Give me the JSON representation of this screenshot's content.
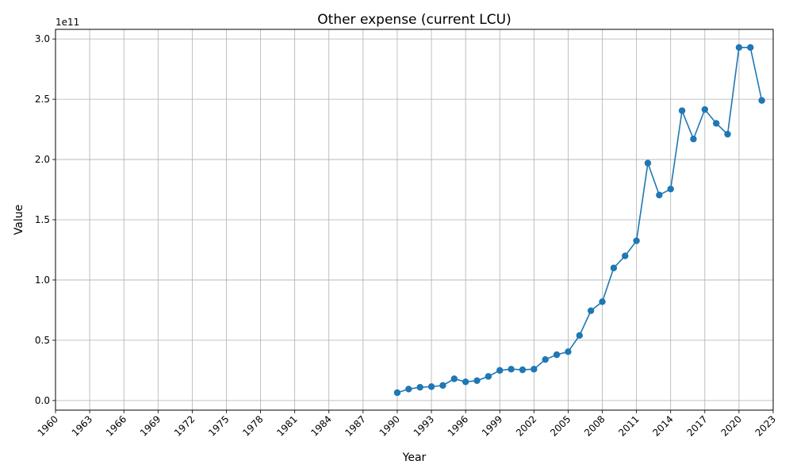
{
  "chart_data": {
    "type": "line",
    "title": "Other expense (current LCU)",
    "xlabel": "Year",
    "ylabel": "Value",
    "offset_label": "1e11",
    "xlim": [
      1960,
      2023
    ],
    "ylim": [
      -0.08,
      3.08
    ],
    "x_ticks": [
      1960,
      1963,
      1966,
      1969,
      1972,
      1975,
      1978,
      1981,
      1984,
      1987,
      1990,
      1993,
      1996,
      1999,
      2002,
      2005,
      2008,
      2011,
      2014,
      2017,
      2020,
      2023
    ],
    "y_ticks": [
      0.0,
      0.5,
      1.0,
      1.5,
      2.0,
      2.5,
      3.0
    ],
    "y_tick_labels": [
      "0.0",
      "0.5",
      "1.0",
      "1.5",
      "2.0",
      "2.5",
      "3.0"
    ],
    "grid": true,
    "series": [
      {
        "color": "#1f77b4",
        "marker": "circle",
        "x": [
          1990,
          1991,
          1992,
          1993,
          1994,
          1995,
          1996,
          1997,
          1998,
          1999,
          2000,
          2001,
          2002,
          2003,
          2004,
          2005,
          2006,
          2007,
          2008,
          2009,
          2010,
          2011,
          2012,
          2013,
          2014,
          2015,
          2016,
          2017,
          2018,
          2019,
          2020,
          2021,
          2022
        ],
        "y": [
          0.065,
          0.095,
          0.11,
          0.115,
          0.125,
          0.18,
          0.155,
          0.165,
          0.2,
          0.25,
          0.26,
          0.255,
          0.26,
          0.34,
          0.38,
          0.405,
          0.54,
          0.745,
          0.82,
          1.1,
          1.2,
          1.325,
          1.97,
          1.705,
          1.755,
          2.405,
          2.17,
          2.415,
          2.3,
          2.21,
          2.93,
          2.93,
          2.49
        ]
      }
    ]
  }
}
